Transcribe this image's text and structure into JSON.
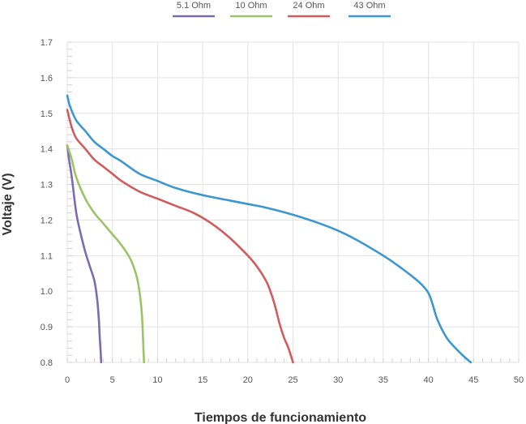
{
  "chart_data": {
    "type": "line",
    "title": "",
    "xlabel": "Tiempos de funcionamiento",
    "ylabel": "Voltaje (V)",
    "xlim": [
      0,
      50
    ],
    "ylim": [
      0.8,
      1.7
    ],
    "xticks": [
      0,
      5,
      10,
      15,
      20,
      25,
      30,
      35,
      40,
      45,
      50
    ],
    "yticks": [
      "0.8",
      "0.9",
      "1.0",
      "1.1",
      "1.2",
      "1.3",
      "1.4",
      "1.5",
      "1.6",
      "1.7"
    ],
    "grid": true,
    "legend_position": "top",
    "series": [
      {
        "name": "5.1 Ohm",
        "color": "#7b6bb0",
        "x": [
          0,
          0.2,
          0.5,
          1.0,
          1.5,
          2.0,
          2.5,
          3.0,
          3.3,
          3.5,
          3.6,
          3.7,
          3.75
        ],
        "y": [
          1.41,
          1.37,
          1.32,
          1.22,
          1.16,
          1.11,
          1.07,
          1.03,
          0.98,
          0.92,
          0.87,
          0.83,
          0.8
        ]
      },
      {
        "name": "10 Ohm",
        "color": "#9cc366",
        "x": [
          0,
          0.5,
          1.0,
          2.0,
          3.0,
          4.0,
          5.0,
          6.0,
          7.0,
          7.7,
          8.1,
          8.3,
          8.4,
          8.5
        ],
        "y": [
          1.41,
          1.37,
          1.32,
          1.26,
          1.22,
          1.19,
          1.16,
          1.13,
          1.09,
          1.04,
          0.98,
          0.92,
          0.86,
          0.8
        ]
      },
      {
        "name": "24 Ohm",
        "color": "#cf5c5e",
        "x": [
          0,
          0.5,
          1,
          2,
          3,
          4,
          5,
          6,
          8,
          10,
          12,
          14,
          16,
          18,
          20,
          21,
          22,
          22.5,
          23,
          23.5,
          24,
          24.5,
          25
        ],
        "y": [
          1.51,
          1.46,
          1.43,
          1.4,
          1.37,
          1.35,
          1.33,
          1.31,
          1.28,
          1.26,
          1.24,
          1.22,
          1.19,
          1.15,
          1.1,
          1.07,
          1.03,
          1.0,
          0.96,
          0.91,
          0.87,
          0.84,
          0.8
        ]
      },
      {
        "name": "43 Ohm",
        "color": "#3d97cf",
        "x": [
          0,
          0.3,
          1,
          2,
          3,
          4,
          5,
          6,
          8,
          10,
          12,
          15,
          18,
          20,
          22,
          25,
          28,
          30,
          32,
          35,
          37,
          39,
          40,
          40.5,
          41,
          42,
          43,
          44,
          44.7
        ],
        "y": [
          1.55,
          1.52,
          1.48,
          1.45,
          1.42,
          1.4,
          1.38,
          1.365,
          1.33,
          1.31,
          1.29,
          1.27,
          1.255,
          1.245,
          1.235,
          1.215,
          1.19,
          1.17,
          1.145,
          1.1,
          1.065,
          1.025,
          0.995,
          0.96,
          0.92,
          0.87,
          0.84,
          0.815,
          0.8
        ]
      }
    ]
  }
}
